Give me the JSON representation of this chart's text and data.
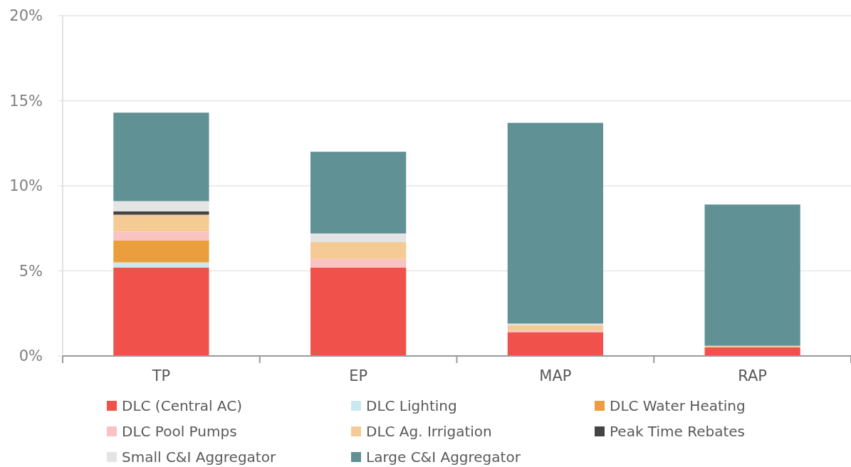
{
  "chart_data": {
    "type": "bar",
    "stacked": true,
    "categories": [
      "TP",
      "EP",
      "MAP",
      "RAP"
    ],
    "series": [
      {
        "name": "DLC (Central AC)",
        "color": "#f0524b",
        "values": [
          5.2,
          5.2,
          1.4,
          0.5
        ]
      },
      {
        "name": "DLC Lighting",
        "color": "#c9e8f0",
        "values": [
          0.3,
          0,
          0,
          0
        ]
      },
      {
        "name": "DLC Water Heating",
        "color": "#eb9e3d",
        "values": [
          1.3,
          0,
          0,
          0
        ]
      },
      {
        "name": "DLC Pool Pumps",
        "color": "#f9c3c3",
        "values": [
          0.5,
          0.5,
          0.1,
          0
        ]
      },
      {
        "name": "DLC Ag. Irrigation",
        "color": "#f5cb95",
        "values": [
          1.0,
          1.0,
          0.3,
          0.1
        ]
      },
      {
        "name": "Peak Time Rebates",
        "color": "#444444",
        "values": [
          0.2,
          0,
          0,
          0
        ]
      },
      {
        "name": "Small C&I Aggregator",
        "color": "#e4e4e4",
        "values": [
          0.6,
          0.5,
          0.1,
          0
        ]
      },
      {
        "name": "Large C&I Aggregator",
        "color": "#609194",
        "values": [
          5.2,
          4.8,
          11.8,
          8.3
        ]
      }
    ],
    "ylim": [
      0,
      20
    ],
    "yticks": [
      {
        "value": 0,
        "label": "0%"
      },
      {
        "value": 5,
        "label": "5%"
      },
      {
        "value": 10,
        "label": "10%"
      },
      {
        "value": 15,
        "label": "15%"
      },
      {
        "value": 20,
        "label": "20%"
      }
    ],
    "grid": "y",
    "legend": "bottom"
  }
}
